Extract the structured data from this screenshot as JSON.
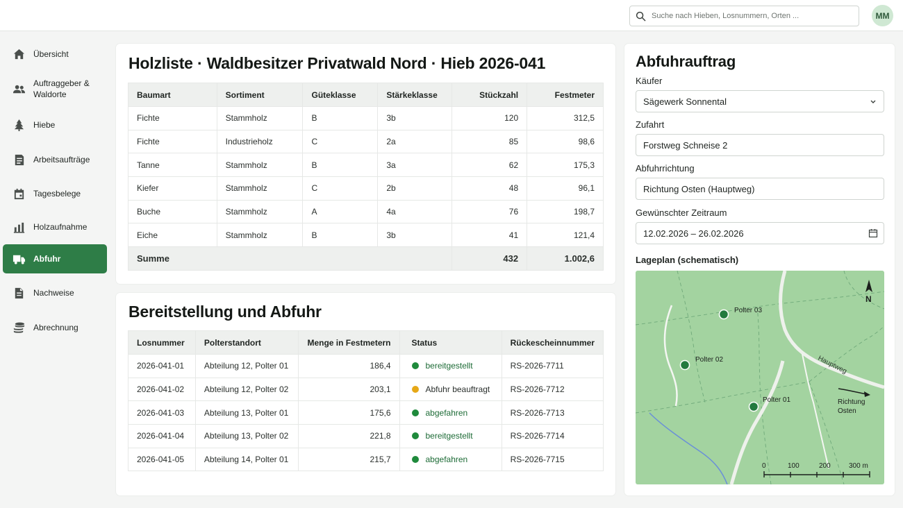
{
  "search": {
    "placeholder": "Suche nach Hieben, Losnummern, Orten ..."
  },
  "user": {
    "initials": "MM"
  },
  "sidebar": {
    "items": [
      {
        "label": "Übersicht",
        "icon": "home-icon"
      },
      {
        "label": "Auftraggeber & Waldorte",
        "icon": "users-icon"
      },
      {
        "label": "Hiebe",
        "icon": "tree-icon"
      },
      {
        "label": "Arbeitsaufträge",
        "icon": "clipboard-icon"
      },
      {
        "label": "Tagesbelege",
        "icon": "calendar-icon"
      },
      {
        "label": "Holzaufnahme",
        "icon": "bar-chart-icon"
      },
      {
        "label": "Abfuhr",
        "icon": "truck-icon",
        "active": true
      },
      {
        "label": "Nachweise",
        "icon": "document-icon"
      },
      {
        "label": "Abrechnung",
        "icon": "coins-icon"
      }
    ]
  },
  "holzliste": {
    "title": "Holzliste · Waldbesitzer Privatwald Nord · Hieb 2026-041",
    "headers": [
      "Baumart",
      "Sortiment",
      "Güteklasse",
      "Stärkeklasse",
      "Stückzahl",
      "Festmeter"
    ],
    "rows": [
      [
        "Fichte",
        "Stammholz",
        "B",
        "3b",
        "120",
        "312,5"
      ],
      [
        "Fichte",
        "Industrieholz",
        "C",
        "2a",
        "85",
        "98,6"
      ],
      [
        "Tanne",
        "Stammholz",
        "B",
        "3a",
        "62",
        "175,3"
      ],
      [
        "Kiefer",
        "Stammholz",
        "C",
        "2b",
        "48",
        "96,1"
      ],
      [
        "Buche",
        "Stammholz",
        "A",
        "4a",
        "76",
        "198,7"
      ],
      [
        "Eiche",
        "Stammholz",
        "B",
        "3b",
        "41",
        "121,4"
      ]
    ],
    "sum": {
      "label": "Summe",
      "stueckzahl": "432",
      "festmeter": "1.002,6"
    }
  },
  "bereitstellung": {
    "title": "Bereitstellung und Abfuhr",
    "headers": [
      "Losnummer",
      "Polterstandort",
      "Menge in Festmetern",
      "Status",
      "Rückescheinnummer"
    ],
    "rows": [
      {
        "los": "2026-041-01",
        "ort": "Abteilung 12, Polter 01",
        "menge": "186,4",
        "status": "bereitgestellt",
        "color": "#1f8a3c",
        "nr": "RS-2026-7711"
      },
      {
        "los": "2026-041-02",
        "ort": "Abteilung 12, Polter 02",
        "menge": "203,1",
        "status": "Abfuhr beauftragt",
        "color": "#e6a817",
        "nr": "RS-2026-7712"
      },
      {
        "los": "2026-041-03",
        "ort": "Abteilung 13, Polter 01",
        "menge": "175,6",
        "status": "abgefahren",
        "color": "#1f8a3c",
        "nr": "RS-2026-7713"
      },
      {
        "los": "2026-041-04",
        "ort": "Abteilung 13, Polter 02",
        "menge": "221,8",
        "status": "bereitgestellt",
        "color": "#1f8a3c",
        "nr": "RS-2026-7714"
      },
      {
        "los": "2026-041-05",
        "ort": "Abteilung 14, Polter 01",
        "menge": "215,7",
        "status": "abgefahren",
        "color": "#1f8a3c",
        "nr": "RS-2026-7715"
      }
    ]
  },
  "abfuhrauftrag": {
    "title": "Abfuhrauftrag",
    "kaeufer": {
      "label": "Käufer",
      "value": "Sägewerk Sonnental"
    },
    "zufahrt": {
      "label": "Zufahrt",
      "value": "Forstweg Schneise 2"
    },
    "richtung": {
      "label": "Abfuhrrichtung",
      "value": "Richtung Osten (Hauptweg)"
    },
    "zeitraum": {
      "label": "Gewünschter Zeitraum",
      "value": "12.02.2026 – 26.02.2026"
    },
    "map": {
      "label": "Lageplan (schematisch)",
      "north": "N",
      "road": "Hauptweg",
      "direction_line1": "Richtung",
      "direction_line2": "Osten",
      "polter": [
        "Polter 03",
        "Polter 02",
        "Polter 01"
      ],
      "scale": [
        "0",
        "100",
        "200",
        "300 m"
      ]
    }
  }
}
